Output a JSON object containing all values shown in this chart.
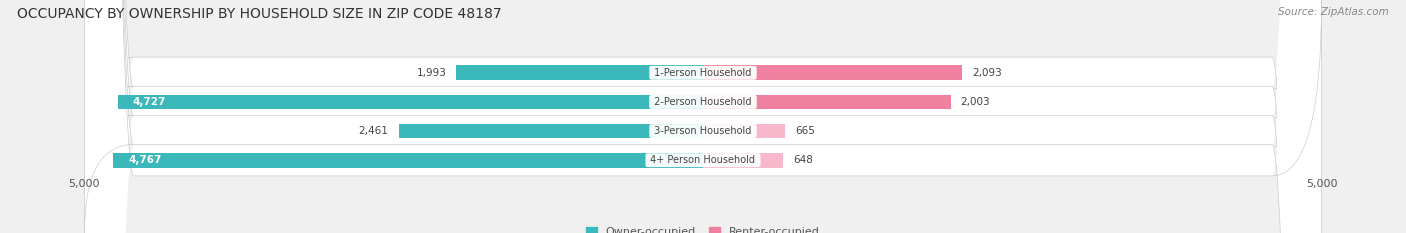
{
  "title": "OCCUPANCY BY OWNERSHIP BY HOUSEHOLD SIZE IN ZIP CODE 48187",
  "source": "Source: ZipAtlas.com",
  "categories": [
    "1-Person Household",
    "2-Person Household",
    "3-Person Household",
    "4+ Person Household"
  ],
  "owner_values": [
    1993,
    4727,
    2461,
    4767
  ],
  "renter_values": [
    2093,
    2003,
    665,
    648
  ],
  "max_axis": 5000,
  "owner_color": "#3ab8ba",
  "renter_color_large": "#f080a0",
  "renter_color_small": "#f8b8cc",
  "owner_label": "Owner-occupied",
  "renter_label": "Renter-occupied",
  "bg_color": "#f0f0f0",
  "bar_bg_color": "#e0e0e0",
  "title_fontsize": 10,
  "source_fontsize": 7.5,
  "legend_fontsize": 8,
  "axis_label_fontsize": 8,
  "category_fontsize": 7,
  "value_fontsize": 7.5,
  "bar_height": 0.6,
  "large_threshold": 3000,
  "renter_large_threshold": 1000
}
